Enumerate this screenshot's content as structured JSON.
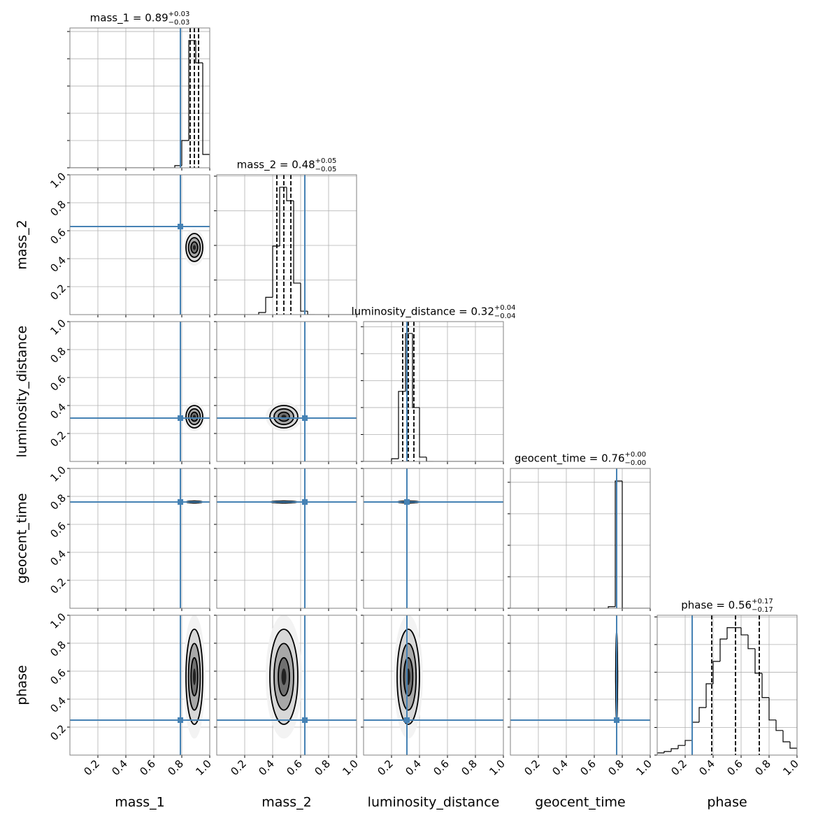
{
  "chart_data": {
    "type": "corner",
    "xlim": [
      0,
      1
    ],
    "xticks": [
      0.2,
      0.4,
      0.6,
      0.8,
      {
        "value": 1,
        "label": "1.0"
      }
    ],
    "ylim": [
      0,
      1
    ],
    "yticks": [
      0.2,
      0.4,
      0.6,
      0.8,
      {
        "value": 1,
        "label": "1.0"
      }
    ],
    "grid": true,
    "truth_color": "#4682b4",
    "parameters": [
      {
        "name": "mass_1",
        "title": "mass_1 = 0.89",
        "plus_label": "+0.03",
        "minus_label": "−0.03",
        "median": 0.89,
        "plus": 0.03,
        "minus": 0.03,
        "truth": 0.79,
        "bins": [
          0,
          0.05,
          0.1,
          0.15,
          0.2,
          0.25,
          0.3,
          0.35,
          0.4,
          0.45,
          0.5,
          0.55,
          0.6,
          0.65,
          0.7,
          0.75,
          0.8,
          0.85,
          0.9,
          0.95,
          1
        ],
        "counts": [
          0,
          0,
          0,
          0,
          0,
          0,
          0,
          0,
          0,
          0,
          0,
          0,
          0,
          0,
          0,
          0.08,
          1.0,
          4.67,
          3.85,
          0.49
        ],
        "hist_ylim": [
          0,
          5.13
        ],
        "hist_yticks": [
          0,
          1,
          2,
          3,
          4,
          5
        ]
      },
      {
        "name": "mass_2",
        "title": "mass_2 = 0.48",
        "plus_label": "+0.05",
        "minus_label": "−0.05",
        "median": 0.48,
        "plus": 0.05,
        "minus": 0.05,
        "truth": 0.63,
        "bins": [
          0,
          0.05,
          0.1,
          0.15,
          0.2,
          0.25,
          0.3,
          0.35,
          0.4,
          0.45,
          0.5,
          0.55,
          0.6,
          0.65,
          0.7,
          0.75,
          0.8,
          0.85,
          0.9,
          0.95,
          1
        ],
        "counts": [
          0,
          0,
          0,
          0,
          0,
          0,
          0.06,
          0.5,
          1.98,
          3.68,
          3.29,
          0.91,
          0.1,
          0,
          0,
          0,
          0,
          0,
          0,
          0
        ],
        "hist_ylim": [
          0,
          4.04
        ],
        "hist_yticks": [
          0,
          1,
          2,
          3,
          4
        ]
      },
      {
        "name": "luminosity_distance",
        "title": "luminosity_distance = 0.32",
        "plus_label": "+0.04",
        "minus_label": "−0.04",
        "median": 0.32,
        "plus": 0.04,
        "minus": 0.04,
        "truth": 0.31,
        "bins": [
          0,
          0.05,
          0.1,
          0.15,
          0.2,
          0.25,
          0.3,
          0.35,
          0.4,
          0.45,
          0.5,
          0.55,
          0.6,
          0.65,
          0.7,
          0.75,
          0.8,
          0.85,
          0.9,
          0.95,
          1
        ],
        "counts": [
          0,
          0,
          0,
          0,
          0.1,
          2.6,
          4.75,
          2.0,
          0.16,
          0,
          0,
          0,
          0,
          0,
          0,
          0,
          0,
          0,
          0,
          0
        ],
        "hist_ylim": [
          0,
          5.19
        ],
        "hist_yticks": [
          0,
          1,
          2,
          3,
          4,
          5
        ]
      },
      {
        "name": "geocent_time",
        "title": "geocent_time = 0.76",
        "plus_label": "+0.00",
        "minus_label": "−0.00",
        "median": 0.76,
        "plus": 0,
        "minus": 0,
        "truth": 0.76,
        "bins": [
          0,
          0.05,
          0.1,
          0.15,
          0.2,
          0.25,
          0.3,
          0.35,
          0.4,
          0.45,
          0.5,
          0.55,
          0.6,
          0.65,
          0.7,
          0.75,
          0.8,
          0.85,
          0.9,
          0.95,
          1
        ],
        "counts": [
          0,
          0,
          0,
          0,
          0,
          0,
          0,
          0,
          0,
          0,
          0,
          0,
          0,
          0,
          0.05,
          4.04,
          0,
          0,
          0,
          0
        ],
        "hist_ylim": [
          0,
          4.44
        ],
        "hist_yticks": [
          0,
          1,
          2,
          3,
          4
        ]
      },
      {
        "name": "phase",
        "title": "phase = 0.56",
        "plus_label": "+0.17",
        "minus_label": "−0.17",
        "median": 0.56,
        "plus": 0.17,
        "minus": 0.17,
        "truth": 0.25,
        "bins": [
          0,
          0.05,
          0.1,
          0.15,
          0.2,
          0.25,
          0.3,
          0.35,
          0.4,
          0.45,
          0.5,
          0.55,
          0.6,
          0.65,
          0.7,
          0.75,
          0.8,
          0.85,
          0.9,
          0.95,
          1
        ],
        "counts": [
          0.08,
          0.13,
          0.23,
          0.35,
          0.53,
          1.19,
          1.72,
          2.58,
          3.39,
          4.2,
          4.61,
          4.61,
          4.35,
          3.85,
          2.96,
          2.08,
          1.27,
          0.89,
          0.48,
          0.25
        ],
        "hist_ylim": [
          0,
          5.06
        ],
        "hist_yticks": [
          0,
          1,
          2,
          3,
          4,
          5
        ]
      }
    ]
  }
}
